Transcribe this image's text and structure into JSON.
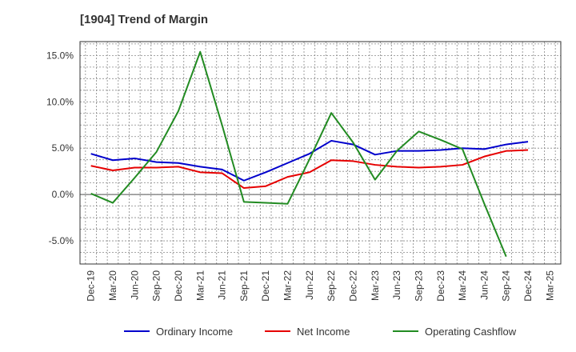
{
  "chart_data": {
    "type": "line",
    "title": "[1904]  Trend of Margin",
    "xlabel": "",
    "ylabel": "",
    "x": [
      "Dec-19",
      "Mar-20",
      "Jun-20",
      "Sep-20",
      "Dec-20",
      "Mar-21",
      "Jun-21",
      "Sep-21",
      "Dec-21",
      "Mar-22",
      "Jun-22",
      "Sep-22",
      "Dec-22",
      "Mar-23",
      "Jun-23",
      "Sep-23",
      "Dec-23",
      "Mar-24",
      "Jun-24",
      "Sep-24",
      "Dec-24",
      "Mar-25"
    ],
    "ylim": [
      -7.5,
      16.5
    ],
    "yticks": [
      -5.0,
      0.0,
      5.0,
      10.0,
      15.0
    ],
    "ytick_labels": [
      "-5.0%",
      "0.0%",
      "5.0%",
      "10.0%",
      "15.0%"
    ],
    "grid": true,
    "legend_position": "bottom",
    "series": [
      {
        "name": "Ordinary Income",
        "color": "#0000cc",
        "values": [
          4.4,
          3.7,
          3.9,
          3.5,
          3.4,
          3.0,
          2.7,
          1.5,
          2.4,
          3.4,
          4.4,
          5.8,
          5.4,
          4.3,
          4.7,
          4.7,
          4.8,
          5.0,
          4.9,
          5.4,
          5.7,
          null
        ]
      },
      {
        "name": "Net Income",
        "color": "#e60000",
        "values": [
          3.1,
          2.6,
          2.9,
          2.9,
          3.0,
          2.4,
          2.3,
          0.7,
          0.9,
          1.9,
          2.4,
          3.7,
          3.6,
          3.2,
          3.0,
          2.9,
          3.0,
          3.2,
          4.1,
          4.7,
          4.8,
          null
        ]
      },
      {
        "name": "Operating Cashflow",
        "color": "#228b22",
        "values": [
          0.1,
          -0.9,
          1.8,
          4.6,
          9.0,
          15.4,
          7.5,
          -0.8,
          -0.9,
          -1.0,
          3.8,
          8.8,
          5.6,
          1.6,
          4.7,
          6.8,
          5.9,
          4.9,
          -1.0,
          -6.7,
          null,
          null
        ]
      }
    ]
  }
}
